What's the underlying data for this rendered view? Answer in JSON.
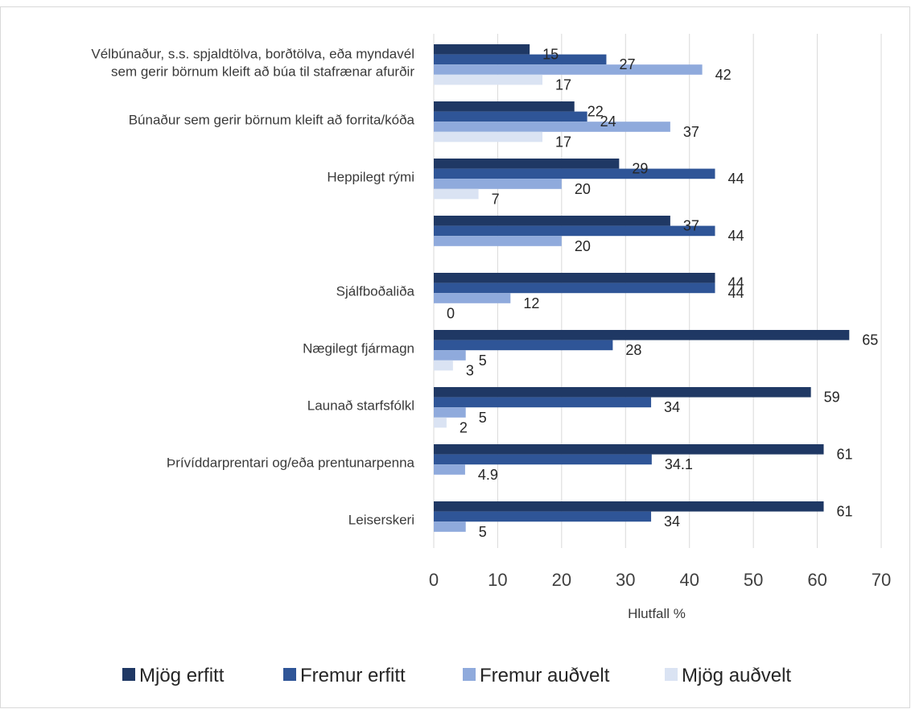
{
  "chart_data": {
    "type": "bar",
    "orientation": "horizontal",
    "categories": [
      [
        "Vélbúnaður, s.s. spjaldtölva, borðtölva, eða myndavél",
        "sem gerir börnum kleift að búa til stafrænar afurðir"
      ],
      [
        "Búnaður sem gerir börnum kleift að forrita/kóða"
      ],
      [
        "Heppilegt rými"
      ],
      [],
      [
        "Sjálfboðaliða"
      ],
      [
        "Nægilegt fjármagn"
      ],
      [
        "Launað starfsfólkl"
      ],
      [
        "Þrívíddarprentari og/eða prentunarpenna"
      ],
      [
        "Leiserskeri"
      ]
    ],
    "series": [
      {
        "name": "Mjög erfitt",
        "color": "#1f3864",
        "values": [
          15,
          22,
          29,
          37,
          44,
          65,
          59,
          61,
          61
        ],
        "labels": [
          "15",
          "22",
          "29",
          "37",
          "44",
          "65",
          "59",
          "61",
          "61"
        ]
      },
      {
        "name": "Fremur erfitt",
        "color": "#2f5597",
        "values": [
          27,
          24,
          44,
          44,
          44,
          28,
          34,
          34.1,
          34
        ],
        "labels": [
          "27",
          "24",
          "44",
          "44",
          "44",
          "28",
          "34",
          "34.1",
          "34"
        ]
      },
      {
        "name": "Fremur auðvelt",
        "color": "#8faadc",
        "values": [
          42,
          37,
          20,
          20,
          12,
          5,
          5,
          4.9,
          5
        ],
        "labels": [
          "42",
          "37",
          "20",
          "20",
          "12",
          "5",
          "5",
          "4.9",
          "5"
        ]
      },
      {
        "name": "Mjög auðvelt",
        "color": "#dae3f3",
        "values": [
          17,
          17,
          7,
          null,
          0,
          3,
          2,
          null,
          null
        ],
        "labels": [
          "17",
          "17",
          "7",
          null,
          "0",
          "3",
          "2",
          null,
          null
        ]
      }
    ],
    "xlabel": "Hlutfall %",
    "xlim": [
      0,
      70
    ],
    "xticks": [
      "0",
      "10",
      "20",
      "30",
      "40",
      "50",
      "60",
      "70"
    ],
    "grid": true,
    "legend_position": "bottom"
  }
}
